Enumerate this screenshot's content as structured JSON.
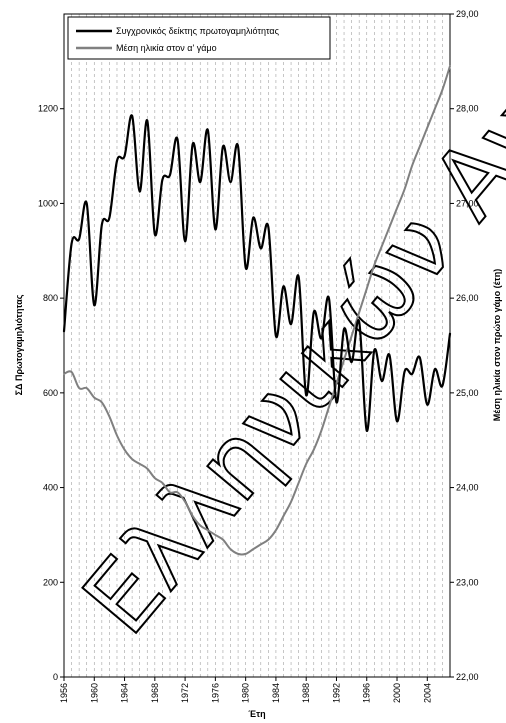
{
  "chart_data": {
    "type": "line",
    "title": "",
    "xlabel": "Έτη",
    "ylabel_left": "ΣΔ Πρωτογαμηλιότητας",
    "ylabel_right": "Μέση ηλικία στον πρώτο γάμο (έτη)",
    "x_range": [
      1956,
      2007
    ],
    "y_left_range": [
      0,
      1400
    ],
    "y_right_range": [
      22,
      29
    ],
    "x_ticks": [
      "1956",
      "1960",
      "1964",
      "1968",
      "1972",
      "1976",
      "1980",
      "1984",
      "1988",
      "1992",
      "1996",
      "2000",
      "2004"
    ],
    "y_left_ticks": [
      "0",
      "200",
      "400",
      "600",
      "800",
      "1000",
      "1200"
    ],
    "y_right_ticks": [
      "22,00",
      "23,00",
      "24,00",
      "25,00",
      "26,00",
      "27,00",
      "28,00",
      "29,00"
    ],
    "grid": {
      "vertical_dashed": true,
      "horizontal": false
    },
    "legend": {
      "placement": "top-left",
      "entries": [
        "Συγχρονικός δείκτης πρωτογαμηλιότητας",
        "Μέση ηλικία στον α' γάμο"
      ]
    },
    "watermark": "Ελληνικών Ανάλυσεων",
    "series": [
      {
        "name": "Συγχρονικός δείκτης πρωτογαμηλιότητας",
        "axis": "left",
        "color": "#000000",
        "x": [
          1956,
          1957,
          1958,
          1959,
          1960,
          1961,
          1962,
          1963,
          1964,
          1965,
          1966,
          1967,
          1968,
          1969,
          1970,
          1971,
          1972,
          1973,
          1974,
          1975,
          1976,
          1977,
          1978,
          1979,
          1980,
          1981,
          1982,
          1983,
          1984,
          1985,
          1986,
          1987,
          1988,
          1989,
          1990,
          1991,
          1992,
          1993,
          1994,
          1995,
          1996,
          1997,
          1998,
          1999,
          2000,
          2001,
          2002,
          2003,
          2004,
          2005,
          2006,
          2007
        ],
        "y": [
          730,
          915,
          925,
          1000,
          785,
          955,
          970,
          1090,
          1100,
          1185,
          1025,
          1175,
          935,
          1050,
          1060,
          1135,
          920,
          1125,
          1045,
          1155,
          945,
          1120,
          1045,
          1120,
          865,
          970,
          905,
          950,
          720,
          825,
          745,
          845,
          595,
          770,
          715,
          800,
          580,
          735,
          665,
          750,
          520,
          690,
          625,
          680,
          540,
          645,
          640,
          675,
          575,
          650,
          615,
          725
        ]
      },
      {
        "name": "Μέση ηλικία στον α' γάμο",
        "axis": "right",
        "color": "#808080",
        "x": [
          1956,
          1957,
          1958,
          1959,
          1960,
          1961,
          1962,
          1963,
          1964,
          1965,
          1966,
          1967,
          1968,
          1969,
          1970,
          1971,
          1972,
          1973,
          1974,
          1975,
          1976,
          1977,
          1978,
          1979,
          1980,
          1981,
          1982,
          1983,
          1984,
          1985,
          1986,
          1987,
          1988,
          1989,
          1990,
          1991,
          1992,
          1993,
          1994,
          1995,
          1996,
          1997,
          1998,
          1999,
          2000,
          2001,
          2002,
          2003,
          2004,
          2005,
          2006,
          2007
        ],
        "y": [
          25.2,
          25.22,
          25.05,
          25.05,
          24.95,
          24.9,
          24.75,
          24.55,
          24.4,
          24.3,
          24.25,
          24.2,
          24.1,
          24.05,
          23.95,
          23.95,
          23.85,
          23.7,
          23.6,
          23.55,
          23.5,
          23.45,
          23.35,
          23.3,
          23.3,
          23.35,
          23.4,
          23.45,
          23.55,
          23.7,
          23.85,
          24.05,
          24.25,
          24.4,
          24.6,
          24.85,
          25.1,
          25.35,
          25.6,
          25.85,
          26.1,
          26.35,
          26.55,
          26.75,
          26.95,
          27.15,
          27.4,
          27.6,
          27.8,
          28.0,
          28.2,
          28.45
        ]
      }
    ]
  }
}
